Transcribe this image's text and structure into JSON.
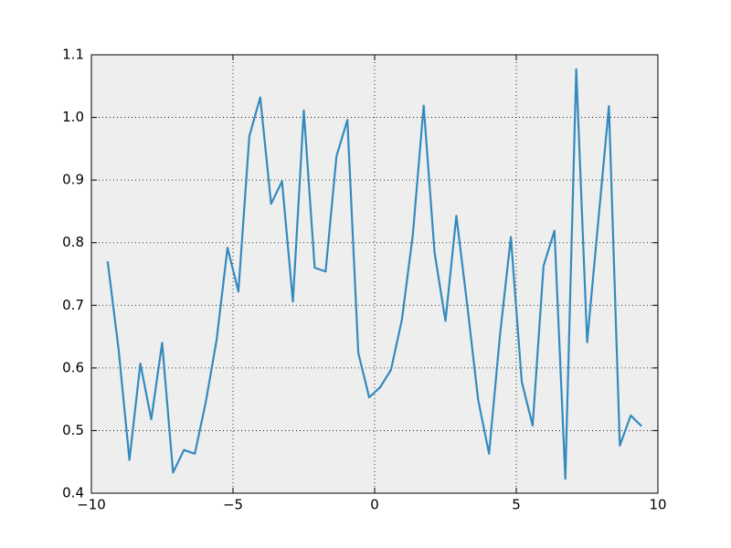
{
  "chart_data": {
    "type": "line",
    "x": [
      -9.425,
      -9.04,
      -8.656,
      -8.271,
      -7.886,
      -7.502,
      -7.117,
      -6.732,
      -6.348,
      -5.963,
      -5.578,
      -5.194,
      -4.809,
      -4.424,
      -4.039,
      -3.655,
      -3.27,
      -2.885,
      -2.501,
      -2.116,
      -1.731,
      -1.347,
      -0.962,
      -0.577,
      -0.192,
      0.192,
      0.577,
      0.962,
      1.347,
      1.731,
      2.116,
      2.501,
      2.885,
      3.27,
      3.655,
      4.039,
      4.424,
      4.809,
      5.194,
      5.578,
      5.963,
      6.348,
      6.732,
      7.117,
      7.502,
      7.886,
      8.271,
      8.656,
      9.04,
      9.425
    ],
    "series": [
      {
        "color": "#348abd",
        "values": [
          0.77,
          0.63,
          0.453,
          0.607,
          0.518,
          0.64,
          0.433,
          0.469,
          0.463,
          0.545,
          0.645,
          0.792,
          0.722,
          0.97,
          1.032,
          0.862,
          0.898,
          0.706,
          1.011,
          0.76,
          0.754,
          0.938,
          0.996,
          0.624,
          0.553,
          0.569,
          0.597,
          0.677,
          0.812,
          1.019,
          0.784,
          0.675,
          0.843,
          0.7,
          0.549,
          0.463,
          0.652,
          0.809,
          0.578,
          0.508,
          0.763,
          0.819,
          0.423,
          1.077,
          0.641,
          0.83,
          1.018,
          0.476,
          0.524,
          0.507
        ]
      }
    ],
    "xlim": [
      -10,
      10
    ],
    "xticks": [
      {
        "value": -10,
        "label": "−10"
      },
      {
        "value": -5,
        "label": "−5"
      },
      0,
      5,
      10
    ],
    "ylim": [
      0.4,
      1.1
    ],
    "yticks": [
      0.4,
      0.5,
      0.6,
      0.7,
      0.8,
      0.9,
      {
        "value": 1.0,
        "label": "1.0"
      },
      1.1
    ],
    "grid": true
  }
}
